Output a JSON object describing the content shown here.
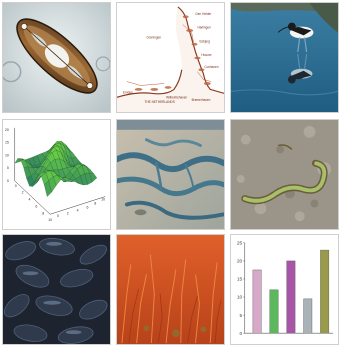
{
  "tiles": [
    {
      "name": "diatom-microscopy-image"
    },
    {
      "name": "coastal-map-image"
    },
    {
      "name": "avocet-bird-image"
    },
    {
      "name": "surface-plot-image"
    },
    {
      "name": "tidal-flat-aerial-image"
    },
    {
      "name": "ragworm-image"
    },
    {
      "name": "mussels-image"
    },
    {
      "name": "salicornia-image"
    },
    {
      "name": "bar-chart-image"
    }
  ],
  "map": {
    "country_label": "THE NETHERLANDS",
    "region_label": "Groningen",
    "city_labels": [
      "Den Helder",
      "Harlingen",
      "Esbjerg",
      "Husum",
      "Cuxhaven",
      "Bremerhaven",
      "Wilhelmshaven",
      "Emden"
    ]
  },
  "surface_plot": {
    "z_ticks": [
      "20",
      "15",
      "10",
      "5",
      "0"
    ],
    "x_ticks": [
      "0",
      "2",
      "4",
      "6",
      "8",
      "10"
    ],
    "y_ticks": [
      "0",
      "2",
      "4",
      "6",
      "8",
      "10"
    ]
  },
  "chart_data": {
    "type": "bar",
    "categories": [
      "",
      "",
      "",
      "",
      ""
    ],
    "values": [
      17.5,
      12,
      20,
      9.5,
      23
    ],
    "colors": [
      "#d8a8c8",
      "#5cb85c",
      "#a855a8",
      "#a9b3b8",
      "#9a9b4a"
    ],
    "ylim": [
      0,
      25
    ],
    "y_ticks": [
      "0",
      "5",
      "10",
      "15",
      "20",
      "25"
    ],
    "title": "",
    "xlabel": "",
    "ylabel": ""
  }
}
